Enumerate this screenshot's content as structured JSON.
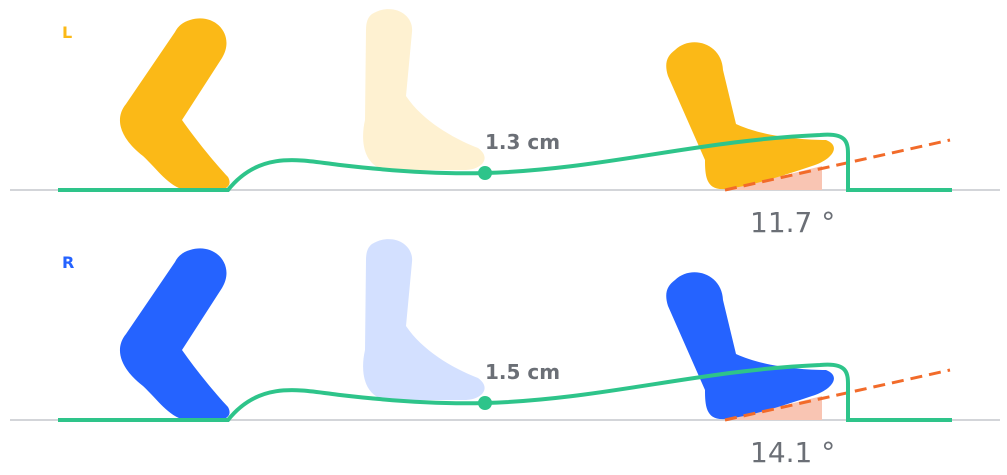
{
  "rows": [
    {
      "side": "L",
      "color": "#fbb917",
      "clearance": "1.3 cm",
      "angle": "11.7 °"
    },
    {
      "side": "R",
      "color": "#2563ff",
      "clearance": "1.5 cm",
      "angle": "14.1 °"
    }
  ]
}
